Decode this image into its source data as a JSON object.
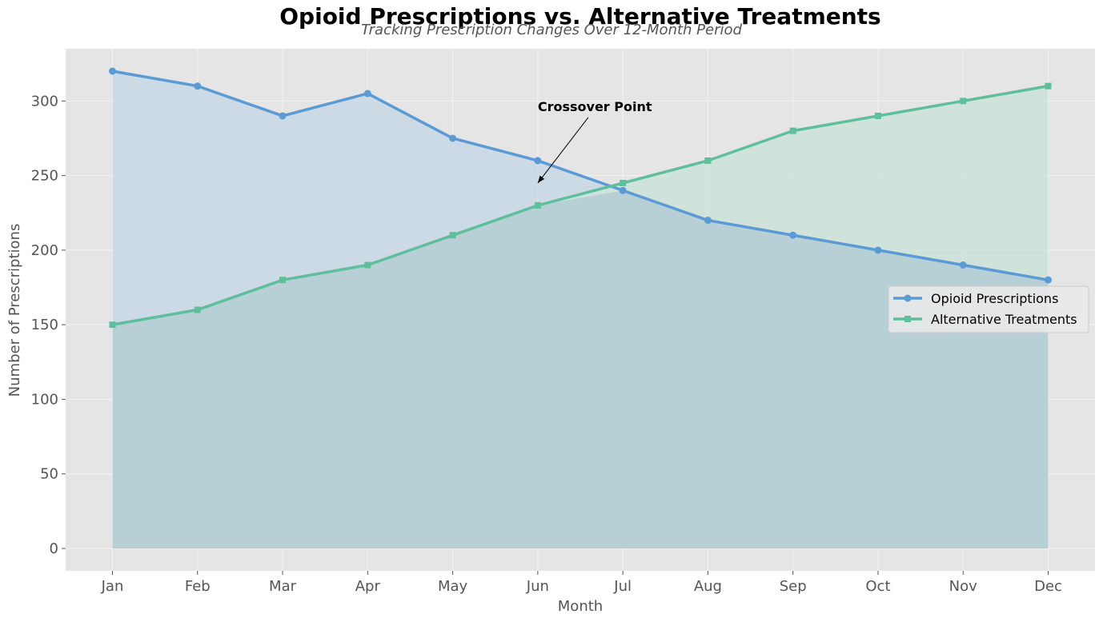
{
  "chart_data": {
    "type": "line",
    "title": "Opioid Prescriptions vs. Alternative Treatments",
    "subtitle": "Tracking Prescription Changes Over 12-Month Period",
    "xlabel": "Month",
    "ylabel": "Number of Prescriptions",
    "categories": [
      "Jan",
      "Feb",
      "Mar",
      "Apr",
      "May",
      "Jun",
      "Jul",
      "Aug",
      "Sep",
      "Oct",
      "Nov",
      "Dec"
    ],
    "ylim": [
      -15,
      335
    ],
    "yticks": [
      0,
      50,
      100,
      150,
      200,
      250,
      300
    ],
    "grid": true,
    "legend_position": "center-right",
    "series": [
      {
        "name": "Opioid Prescriptions",
        "values": [
          320,
          310,
          290,
          305,
          275,
          260,
          240,
          220,
          210,
          200,
          190,
          180
        ],
        "color": "#5b9bd5",
        "fill": "#c8d8e6",
        "marker": "circle"
      },
      {
        "name": "Alternative Treatments",
        "values": [
          150,
          160,
          180,
          190,
          210,
          230,
          245,
          260,
          280,
          290,
          300,
          310
        ],
        "color": "#5dbf9b",
        "fill": "#cde3d9",
        "marker": "square"
      }
    ],
    "overlap_fill": "#b7d0d6",
    "annotations": [
      {
        "text": "Crossover Point",
        "target_x": "Jun",
        "target_y": 245
      }
    ],
    "plot_background": "#e5e5e5"
  }
}
